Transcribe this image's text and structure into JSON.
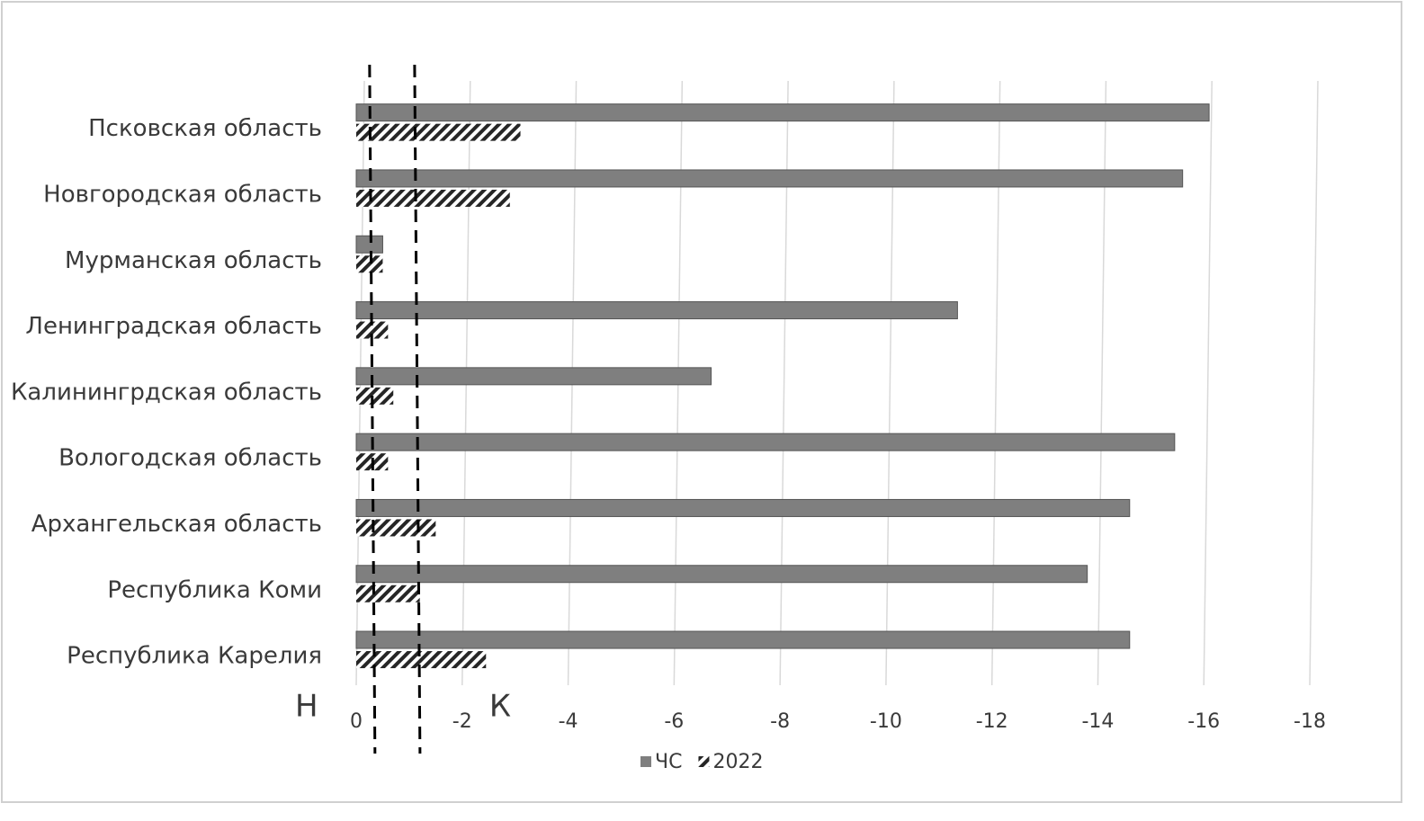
{
  "chart_data": {
    "type": "hbar",
    "categories": [
      "Псковская область",
      "Новгородская область",
      "Мурманская область",
      "Ленинградская область",
      "Калинингрдская область",
      "Вологодская область",
      "Архангельская область",
      "Республика Коми",
      "Республика Карелия"
    ],
    "series": [
      {
        "name": "ЧС",
        "color": "#7f7f7f",
        "values": [
          -16.1,
          -15.6,
          -0.5,
          -11.35,
          -6.7,
          -15.45,
          -14.6,
          -13.8,
          -14.6
        ]
      },
      {
        "name": "2022",
        "color": "#262626",
        "values": [
          -3.1,
          -2.9,
          -0.5,
          -0.6,
          -0.7,
          -0.6,
          -1.5,
          -1.2,
          -2.45
        ]
      }
    ],
    "xlim": [
      0,
      -18
    ],
    "xticks": [
      0,
      -2,
      -4,
      -6,
      -8,
      -10,
      -12,
      -14,
      -16,
      -18
    ],
    "grid": true,
    "legend": "bottom",
    "reference_lines": [
      {
        "label": "Н",
        "value": -0.15
      },
      {
        "label": "К",
        "value": -1.0
      }
    ]
  }
}
